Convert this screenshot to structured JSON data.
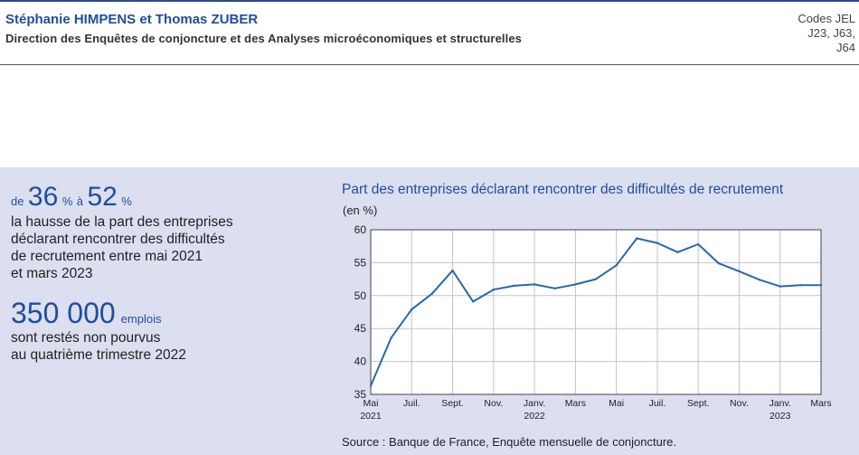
{
  "header": {
    "authors": "Stéphanie HIMPENS et Thomas ZUBER",
    "direction": "Direction des Enquêtes de conjoncture et des Analyses microéconomiques et structurelles",
    "jel_lines": [
      "Codes JEL",
      "J23, J63,",
      "J64"
    ]
  },
  "key_figures": {
    "fig1": {
      "prefix": "de",
      "value1": "36",
      "unit1": "%",
      "between": "à",
      "value2": "52",
      "unit2": "%",
      "text_lines": [
        "la hausse de la part des entreprises",
        "déclarant rencontrer des difficultés",
        "de recrutement entre mai 2021",
        "et mars 2023"
      ]
    },
    "fig2": {
      "value": "350 000",
      "unit": "emplois",
      "text_lines": [
        "sont restés non pourvus",
        "au quatrième trimestre 2022"
      ]
    }
  },
  "colors": {
    "accent": "#1f4e9c",
    "panel": "#dcdff0",
    "line": "#2a66ad"
  },
  "chart_data": {
    "type": "line",
    "title": "Part des entreprises déclarant rencontrer des difficultés de recrutement",
    "unit_label": "(en %)",
    "ylim": [
      35,
      60
    ],
    "yticks": [
      35,
      40,
      45,
      50,
      55,
      60
    ],
    "grid": true,
    "x": [
      "2021-05",
      "2021-06",
      "2021-07",
      "2021-08",
      "2021-09",
      "2021-10",
      "2021-11",
      "2021-12",
      "2022-01",
      "2022-02",
      "2022-03",
      "2022-04",
      "2022-05",
      "2022-06",
      "2022-07",
      "2022-08",
      "2022-09",
      "2022-10",
      "2022-11",
      "2022-12",
      "2023-01",
      "2023-02",
      "2023-03"
    ],
    "x_ticks": [
      {
        "x": "2021-05",
        "label": "Mai",
        "year": "2021"
      },
      {
        "x": "2021-07",
        "label": "Juil."
      },
      {
        "x": "2021-09",
        "label": "Sept."
      },
      {
        "x": "2021-11",
        "label": "Nov."
      },
      {
        "x": "2022-01",
        "label": "Janv.",
        "year": "2022"
      },
      {
        "x": "2022-03",
        "label": "Mars"
      },
      {
        "x": "2022-05",
        "label": "Mai"
      },
      {
        "x": "2022-07",
        "label": "Juil."
      },
      {
        "x": "2022-09",
        "label": "Sept."
      },
      {
        "x": "2022-11",
        "label": "Nov."
      },
      {
        "x": "2023-01",
        "label": "Janv.",
        "year": "2023"
      },
      {
        "x": "2023-03",
        "label": "Mars"
      }
    ],
    "series": [
      {
        "values": [
          36.3,
          43.6,
          47.9,
          50.3,
          53.8,
          49.1,
          50.9,
          51.5,
          51.7,
          51.1,
          51.7,
          52.5,
          54.6,
          58.7,
          58.0,
          56.6,
          57.8,
          54.9,
          53.7,
          52.4,
          51.4,
          51.6,
          51.6
        ]
      }
    ],
    "source": "Source : Banque de France, Enquête mensuelle de conjoncture."
  }
}
